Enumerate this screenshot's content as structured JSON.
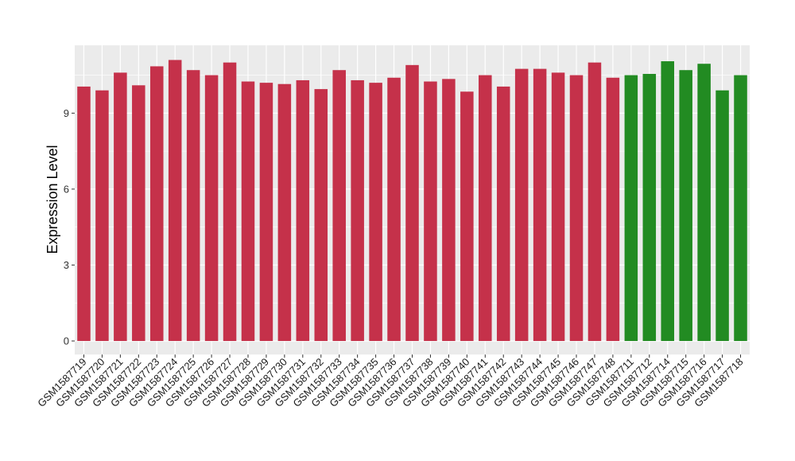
{
  "chart_data": {
    "type": "bar",
    "title": "",
    "xlabel": "",
    "ylabel": "Expression Level",
    "ylim": [
      0,
      11.6
    ],
    "yticks": [
      0,
      3,
      6,
      9
    ],
    "grid": true,
    "colors": {
      "group1": "#C5314A",
      "group2": "#228B22",
      "panel_bg": "#EBEBEB",
      "grid": "#FFFFFF"
    },
    "categories": [
      "GSM1587719",
      "GSM1587720",
      "GSM1587721",
      "GSM1587722",
      "GSM1587723",
      "GSM1587724",
      "GSM1587725",
      "GSM1587726",
      "GSM1587727",
      "GSM1587728",
      "GSM1587729",
      "GSM1587730",
      "GSM1587731",
      "GSM1587732",
      "GSM1587733",
      "GSM1587734",
      "GSM1587735",
      "GSM1587736",
      "GSM1587737",
      "GSM1587738",
      "GSM1587739",
      "GSM1587740",
      "GSM1587741",
      "GSM1587742",
      "GSM1587743",
      "GSM1587744",
      "GSM1587745",
      "GSM1587746",
      "GSM1587747",
      "GSM1587748",
      "GSM1587711",
      "GSM1587712",
      "GSM1587714",
      "GSM1587715",
      "GSM1587716",
      "GSM1587717",
      "GSM1587718"
    ],
    "values": [
      10.05,
      9.9,
      10.6,
      10.1,
      10.85,
      11.1,
      10.7,
      10.5,
      11.0,
      10.25,
      10.2,
      10.15,
      10.3,
      9.95,
      10.7,
      10.3,
      10.2,
      10.4,
      10.9,
      10.25,
      10.35,
      9.85,
      10.5,
      10.05,
      10.75,
      10.75,
      10.6,
      10.5,
      11.0,
      10.4,
      10.5,
      10.55,
      11.05,
      10.7,
      10.95,
      9.9,
      10.5
    ],
    "groups": [
      "group1",
      "group1",
      "group1",
      "group1",
      "group1",
      "group1",
      "group1",
      "group1",
      "group1",
      "group1",
      "group1",
      "group1",
      "group1",
      "group1",
      "group1",
      "group1",
      "group1",
      "group1",
      "group1",
      "group1",
      "group1",
      "group1",
      "group1",
      "group1",
      "group1",
      "group1",
      "group1",
      "group1",
      "group1",
      "group1",
      "group2",
      "group2",
      "group2",
      "group2",
      "group2",
      "group2",
      "group2"
    ]
  }
}
